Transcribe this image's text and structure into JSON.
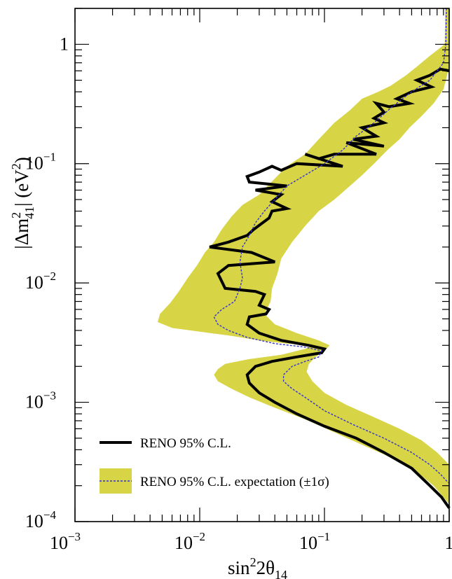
{
  "chart_data": {
    "type": "line",
    "xscale": "log",
    "yscale": "log",
    "xlim": [
      0.001,
      1
    ],
    "ylim": [
      0.0001,
      2
    ],
    "xlabel": {
      "base": "sin",
      "sup": "2",
      "mid": "2θ",
      "sub": "14"
    },
    "ylabel": {
      "open": "|Δm",
      "sup": "2",
      "sub": "41",
      "close": "| (eV",
      "sup2": "2",
      "end": ")"
    },
    "x_ticks": [
      {
        "base": "10",
        "exp": "−3",
        "value": 0.001
      },
      {
        "base": "10",
        "exp": "−2",
        "value": 0.01
      },
      {
        "base": "10",
        "exp": "−1",
        "value": 0.1
      },
      {
        "base": "1",
        "exp": "",
        "value": 1
      }
    ],
    "y_ticks": [
      {
        "base": "10",
        "exp": "−4",
        "value": 0.0001
      },
      {
        "base": "10",
        "exp": "−3",
        "value": 0.001
      },
      {
        "base": "10",
        "exp": "−2",
        "value": 0.01
      },
      {
        "base": "10",
        "exp": "−1",
        "value": 0.1
      },
      {
        "base": "1",
        "exp": "",
        "value": 1
      }
    ],
    "legend": {
      "position": "bottom-left",
      "entries": [
        "RENO 95% C.L.",
        "RENO 95% C.L. expectation (±1σ)"
      ]
    },
    "colors": {
      "band": "#d7d546",
      "observed": "#000000",
      "expected": "#3333cc"
    },
    "series": [
      {
        "name": "RENO 95% C.L.",
        "style": "solid",
        "points": [
          [
            1.0,
            0.6
          ],
          [
            0.85,
            0.62
          ],
          [
            0.7,
            0.55
          ],
          [
            0.55,
            0.5
          ],
          [
            0.72,
            0.44
          ],
          [
            0.5,
            0.4
          ],
          [
            0.38,
            0.35
          ],
          [
            0.48,
            0.32
          ],
          [
            0.33,
            0.3
          ],
          [
            0.26,
            0.32
          ],
          [
            0.3,
            0.27
          ],
          [
            0.25,
            0.24
          ],
          [
            0.3,
            0.22
          ],
          [
            0.2,
            0.2
          ],
          [
            0.26,
            0.17
          ],
          [
            0.17,
            0.16
          ],
          [
            0.3,
            0.14
          ],
          [
            0.15,
            0.15
          ],
          [
            0.26,
            0.12
          ],
          [
            0.12,
            0.12
          ],
          [
            0.09,
            0.11
          ],
          [
            0.07,
            0.12
          ],
          [
            0.14,
            0.095
          ],
          [
            0.06,
            0.1
          ],
          [
            0.045,
            0.088
          ],
          [
            0.038,
            0.095
          ],
          [
            0.03,
            0.085
          ],
          [
            0.024,
            0.078
          ],
          [
            0.025,
            0.07
          ],
          [
            0.05,
            0.065
          ],
          [
            0.028,
            0.06
          ],
          [
            0.045,
            0.055
          ],
          [
            0.038,
            0.048
          ],
          [
            0.05,
            0.042
          ],
          [
            0.038,
            0.04
          ],
          [
            0.036,
            0.035
          ],
          [
            0.032,
            0.032
          ],
          [
            0.027,
            0.028
          ],
          [
            0.024,
            0.025
          ],
          [
            0.017,
            0.022
          ],
          [
            0.012,
            0.02
          ],
          [
            0.026,
            0.018
          ],
          [
            0.04,
            0.015
          ],
          [
            0.017,
            0.014
          ],
          [
            0.014,
            0.012
          ],
          [
            0.016,
            0.009
          ],
          [
            0.028,
            0.0085
          ],
          [
            0.033,
            0.008
          ],
          [
            0.03,
            0.0065
          ],
          [
            0.036,
            0.006
          ],
          [
            0.034,
            0.0055
          ],
          [
            0.025,
            0.0052
          ],
          [
            0.024,
            0.0045
          ],
          [
            0.03,
            0.0038
          ],
          [
            0.045,
            0.0033
          ],
          [
            0.075,
            0.003
          ],
          [
            0.1,
            0.0028
          ],
          [
            0.095,
            0.0026
          ],
          [
            0.06,
            0.0024
          ],
          [
            0.038,
            0.0022
          ],
          [
            0.028,
            0.002
          ],
          [
            0.024,
            0.0017
          ],
          [
            0.025,
            0.00145
          ],
          [
            0.03,
            0.0012
          ],
          [
            0.04,
            0.001
          ],
          [
            0.06,
            0.0008
          ],
          [
            0.1,
            0.00063
          ],
          [
            0.18,
            0.0005
          ],
          [
            0.3,
            0.00038
          ],
          [
            0.5,
            0.00028
          ],
          [
            0.7,
            0.0002
          ],
          [
            0.87,
            0.00016
          ],
          [
            1.0,
            0.00013
          ]
        ]
      },
      {
        "name": "RENO 95% C.L. expectation (±1σ)",
        "style": "dashed",
        "points": [
          [
            0.95,
            2.0
          ],
          [
            0.94,
            1.0
          ],
          [
            0.9,
            0.7
          ],
          [
            0.7,
            0.5
          ],
          [
            0.5,
            0.4
          ],
          [
            0.35,
            0.3
          ],
          [
            0.25,
            0.22
          ],
          [
            0.18,
            0.17
          ],
          [
            0.14,
            0.13
          ],
          [
            0.1,
            0.1
          ],
          [
            0.07,
            0.08
          ],
          [
            0.05,
            0.065
          ],
          [
            0.04,
            0.05
          ],
          [
            0.033,
            0.04
          ],
          [
            0.028,
            0.032
          ],
          [
            0.025,
            0.025
          ],
          [
            0.022,
            0.02
          ],
          [
            0.021,
            0.015
          ],
          [
            0.022,
            0.011
          ],
          [
            0.021,
            0.009
          ],
          [
            0.019,
            0.007
          ],
          [
            0.015,
            0.006
          ],
          [
            0.013,
            0.0052
          ],
          [
            0.014,
            0.0045
          ],
          [
            0.017,
            0.004
          ],
          [
            0.024,
            0.0035
          ],
          [
            0.04,
            0.0031
          ],
          [
            0.07,
            0.0029
          ],
          [
            0.095,
            0.0027
          ],
          [
            0.09,
            0.0024
          ],
          [
            0.07,
            0.0022
          ],
          [
            0.055,
            0.002
          ],
          [
            0.047,
            0.0017
          ],
          [
            0.047,
            0.0015
          ],
          [
            0.055,
            0.0013
          ],
          [
            0.07,
            0.0011
          ],
          [
            0.1,
            0.00085
          ],
          [
            0.17,
            0.00065
          ],
          [
            0.3,
            0.0005
          ],
          [
            0.5,
            0.00038
          ],
          [
            0.7,
            0.0003
          ],
          [
            0.85,
            0.00025
          ],
          [
            0.95,
            0.00022
          ],
          [
            1.0,
            0.00021
          ]
        ]
      }
    ],
    "band": {
      "name": "±1σ",
      "left": [
        [
          0.93,
          2.0
        ],
        [
          0.92,
          1.0
        ],
        [
          0.7,
          0.8
        ],
        [
          0.55,
          0.65
        ],
        [
          0.45,
          0.55
        ],
        [
          0.34,
          0.45
        ],
        [
          0.27,
          0.4
        ],
        [
          0.2,
          0.35
        ],
        [
          0.16,
          0.28
        ],
        [
          0.12,
          0.22
        ],
        [
          0.09,
          0.16
        ],
        [
          0.07,
          0.12
        ],
        [
          0.05,
          0.095
        ],
        [
          0.04,
          0.075
        ],
        [
          0.03,
          0.055
        ],
        [
          0.022,
          0.045
        ],
        [
          0.018,
          0.036
        ],
        [
          0.015,
          0.028
        ],
        [
          0.013,
          0.022
        ],
        [
          0.011,
          0.018
        ],
        [
          0.0095,
          0.014
        ],
        [
          0.008,
          0.011
        ],
        [
          0.0068,
          0.0085
        ],
        [
          0.0058,
          0.0068
        ],
        [
          0.0048,
          0.0055
        ],
        [
          0.0046,
          0.0047
        ],
        [
          0.006,
          0.0042
        ],
        [
          0.01,
          0.0039
        ],
        [
          0.018,
          0.0036
        ],
        [
          0.03,
          0.0033
        ],
        [
          0.05,
          0.0031
        ],
        [
          0.08,
          0.003
        ],
        [
          0.07,
          0.0028
        ],
        [
          0.045,
          0.0025
        ],
        [
          0.025,
          0.0023
        ],
        [
          0.016,
          0.0021
        ],
        [
          0.014,
          0.0019
        ],
        [
          0.013,
          0.0017
        ],
        [
          0.014,
          0.0015
        ],
        [
          0.018,
          0.0013
        ],
        [
          0.025,
          0.0011
        ],
        [
          0.04,
          0.0009
        ],
        [
          0.07,
          0.00072
        ],
        [
          0.12,
          0.00056
        ],
        [
          0.2,
          0.00044
        ],
        [
          0.35,
          0.00034
        ],
        [
          0.55,
          0.00026
        ],
        [
          0.75,
          0.0002
        ],
        [
          0.9,
          0.00016
        ],
        [
          1.0,
          0.00014
        ]
      ],
      "right": [
        [
          1.0,
          2.0
        ],
        [
          1.0,
          0.65
        ],
        [
          0.9,
          0.42
        ],
        [
          0.75,
          0.32
        ],
        [
          0.6,
          0.25
        ],
        [
          0.48,
          0.2
        ],
        [
          0.4,
          0.16
        ],
        [
          0.32,
          0.13
        ],
        [
          0.25,
          0.1
        ],
        [
          0.2,
          0.08
        ],
        [
          0.16,
          0.065
        ],
        [
          0.12,
          0.05
        ],
        [
          0.09,
          0.04
        ],
        [
          0.07,
          0.03
        ],
        [
          0.055,
          0.022
        ],
        [
          0.045,
          0.016
        ],
        [
          0.042,
          0.012
        ],
        [
          0.038,
          0.009
        ],
        [
          0.037,
          0.007
        ],
        [
          0.033,
          0.0055
        ],
        [
          0.04,
          0.0045
        ],
        [
          0.06,
          0.0038
        ],
        [
          0.09,
          0.0033
        ],
        [
          0.11,
          0.003
        ],
        [
          0.1,
          0.0027
        ],
        [
          0.085,
          0.0024
        ],
        [
          0.075,
          0.0021
        ],
        [
          0.072,
          0.0018
        ],
        [
          0.08,
          0.0015
        ],
        [
          0.1,
          0.0012
        ],
        [
          0.15,
          0.00095
        ],
        [
          0.25,
          0.00075
        ],
        [
          0.4,
          0.0006
        ],
        [
          0.6,
          0.00048
        ],
        [
          0.8,
          0.00038
        ],
        [
          1.0,
          0.0003
        ],
        [
          1.0,
          0.0001
        ]
      ]
    }
  }
}
